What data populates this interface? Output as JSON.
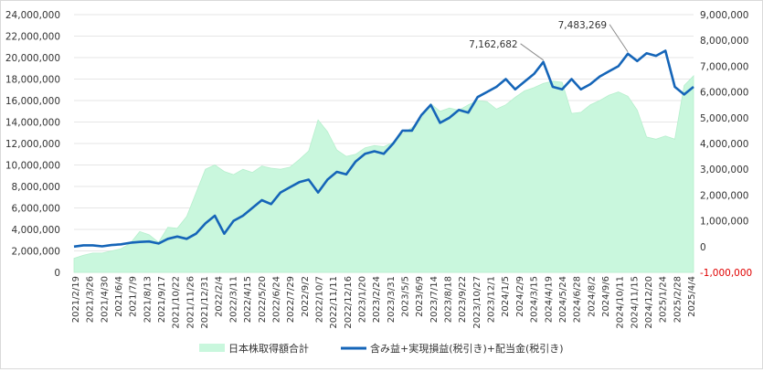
{
  "chart_data": {
    "type": "bar+line",
    "title": "",
    "xlabel": "",
    "ylabel": "",
    "x_ticks": [
      "2021/2/19",
      "2021/3/26",
      "2021/4/30",
      "2021/6/4",
      "2021/7/9",
      "2021/8/13",
      "2021/9/17",
      "2021/10/22",
      "2021/11/26",
      "2021/12/31",
      "2022/2/4",
      "2022/3/11",
      "2022/4/15",
      "2022/5/20",
      "2022/6/24",
      "2022/7/29",
      "2022/9/2",
      "2022/10/7",
      "2022/11/11",
      "2022/12/16",
      "2023/1/20",
      "2023/2/24",
      "2023/3/31",
      "2023/5/5",
      "2023/6/9",
      "2023/7/14",
      "2023/8/18",
      "2023/9/22",
      "2023/10/27",
      "2023/12/1",
      "2024/1/5",
      "2024/2/9",
      "2024/3/15",
      "2024/4/19",
      "2024/5/24",
      "2024/6/28",
      "2024/8/2",
      "2024/9/6",
      "2024/10/11",
      "2024/11/15",
      "2024/12/20",
      "2025/1/24",
      "2025/2/28",
      "2025/4/4"
    ],
    "y_left": {
      "min": 0,
      "max": 24000000,
      "step": 2000000,
      "tick_labels": [
        "0",
        "2,000,000",
        "4,000,000",
        "6,000,000",
        "8,000,000",
        "10,000,000",
        "12,000,000",
        "14,000,000",
        "16,000,000",
        "18,000,000",
        "20,000,000",
        "22,000,000",
        "24,000,000"
      ]
    },
    "y_right": {
      "min": -1000000,
      "max": 9000000,
      "step": 1000000,
      "tick_labels": [
        "-1,000,000",
        "0",
        "1,000,000",
        "2,000,000",
        "3,000,000",
        "4,000,000",
        "5,000,000",
        "6,000,000",
        "7,000,000",
        "8,000,000",
        "9,000,000"
      ]
    },
    "series": [
      {
        "name": "日本株取得額合計",
        "kind": "area",
        "axis": "left",
        "color": "#c9f7dd",
        "points": [
          [
            0,
            1300000
          ],
          [
            1,
            1600000
          ],
          [
            2,
            1800000
          ],
          [
            3,
            1800000
          ],
          [
            4,
            2000000
          ],
          [
            5,
            2200000
          ],
          [
            6,
            2700000
          ],
          [
            7,
            3800000
          ],
          [
            8,
            3500000
          ],
          [
            9,
            2800000
          ],
          [
            10,
            4200000
          ],
          [
            11,
            4100000
          ],
          [
            12,
            5200000
          ],
          [
            13,
            7400000
          ],
          [
            14,
            9600000
          ],
          [
            15,
            10000000
          ],
          [
            16,
            9400000
          ],
          [
            17,
            9100000
          ],
          [
            18,
            9600000
          ],
          [
            19,
            9300000
          ],
          [
            20,
            9900000
          ],
          [
            21,
            9700000
          ],
          [
            22,
            9600000
          ],
          [
            23,
            9800000
          ],
          [
            24,
            10500000
          ],
          [
            25,
            11300000
          ],
          [
            26,
            14200000
          ],
          [
            27,
            13100000
          ],
          [
            28,
            11400000
          ],
          [
            29,
            10800000
          ],
          [
            30,
            11000000
          ],
          [
            31,
            11600000
          ],
          [
            32,
            11800000
          ],
          [
            33,
            11700000
          ],
          [
            34,
            12100000
          ],
          [
            35,
            12900000
          ],
          [
            36,
            13500000
          ],
          [
            37,
            14300000
          ],
          [
            38,
            15700000
          ],
          [
            39,
            15000000
          ],
          [
            40,
            15300000
          ],
          [
            41,
            15100000
          ],
          [
            42,
            15600000
          ],
          [
            43,
            16000000
          ],
          [
            44,
            15900000
          ],
          [
            45,
            15200000
          ],
          [
            46,
            15600000
          ],
          [
            47,
            16300000
          ],
          [
            48,
            16900000
          ],
          [
            49,
            17200000
          ],
          [
            50,
            17600000
          ],
          [
            51,
            17800000
          ],
          [
            52,
            17700000
          ],
          [
            53,
            14800000
          ],
          [
            54,
            14900000
          ],
          [
            55,
            15600000
          ],
          [
            56,
            16000000
          ],
          [
            57,
            16500000
          ],
          [
            58,
            16800000
          ],
          [
            59,
            16400000
          ],
          [
            60,
            15100000
          ],
          [
            61,
            12600000
          ],
          [
            62,
            12400000
          ],
          [
            63,
            12700000
          ],
          [
            64,
            12400000
          ],
          [
            65,
            17400000
          ],
          [
            66,
            18300000
          ]
        ]
      },
      {
        "name": "含み益+実現損益(税引き)+配当金(税引き)",
        "kind": "line",
        "axis": "right",
        "color": "#1565b8",
        "points": [
          [
            0,
            0
          ],
          [
            1,
            50000
          ],
          [
            2,
            50000
          ],
          [
            3,
            10000
          ],
          [
            4,
            60000
          ],
          [
            5,
            90000
          ],
          [
            6,
            150000
          ],
          [
            7,
            180000
          ],
          [
            8,
            200000
          ],
          [
            9,
            120000
          ],
          [
            10,
            300000
          ],
          [
            11,
            390000
          ],
          [
            12,
            300000
          ],
          [
            13,
            500000
          ],
          [
            14,
            900000
          ],
          [
            15,
            1200000
          ],
          [
            16,
            500000
          ],
          [
            17,
            1000000
          ],
          [
            18,
            1200000
          ],
          [
            19,
            1500000
          ],
          [
            20,
            1800000
          ],
          [
            21,
            1650000
          ],
          [
            22,
            2100000
          ],
          [
            23,
            2300000
          ],
          [
            24,
            2500000
          ],
          [
            25,
            2600000
          ],
          [
            26,
            2100000
          ],
          [
            27,
            2600000
          ],
          [
            28,
            2900000
          ],
          [
            29,
            2800000
          ],
          [
            30,
            3300000
          ],
          [
            31,
            3600000
          ],
          [
            32,
            3700000
          ],
          [
            33,
            3600000
          ],
          [
            34,
            4000000
          ],
          [
            35,
            4500000
          ],
          [
            36,
            4500000
          ],
          [
            37,
            5100000
          ],
          [
            38,
            5500000
          ],
          [
            39,
            4800000
          ],
          [
            40,
            5000000
          ],
          [
            41,
            5300000
          ],
          [
            42,
            5200000
          ],
          [
            43,
            5800000
          ],
          [
            44,
            6000000
          ],
          [
            45,
            6200000
          ],
          [
            46,
            6500000
          ],
          [
            47,
            6100000
          ],
          [
            48,
            6400000
          ],
          [
            49,
            6700000
          ],
          [
            50,
            7162682
          ],
          [
            51,
            6200000
          ],
          [
            52,
            6100000
          ],
          [
            53,
            6500000
          ],
          [
            54,
            6100000
          ],
          [
            55,
            6300000
          ],
          [
            56,
            6600000
          ],
          [
            57,
            6800000
          ],
          [
            58,
            7000000
          ],
          [
            59,
            7483269
          ],
          [
            60,
            7200000
          ],
          [
            61,
            7500000
          ],
          [
            62,
            7400000
          ],
          [
            63,
            7600000
          ],
          [
            64,
            6200000
          ],
          [
            65,
            5900000
          ],
          [
            66,
            6200000
          ]
        ]
      }
    ],
    "annotations": [
      {
        "label": "7,162,682",
        "series": 1,
        "point": 50
      },
      {
        "label": "7,483,269",
        "series": 1,
        "point": 59
      }
    ],
    "legend": {
      "placement": "bottom-center"
    },
    "grid": true
  }
}
